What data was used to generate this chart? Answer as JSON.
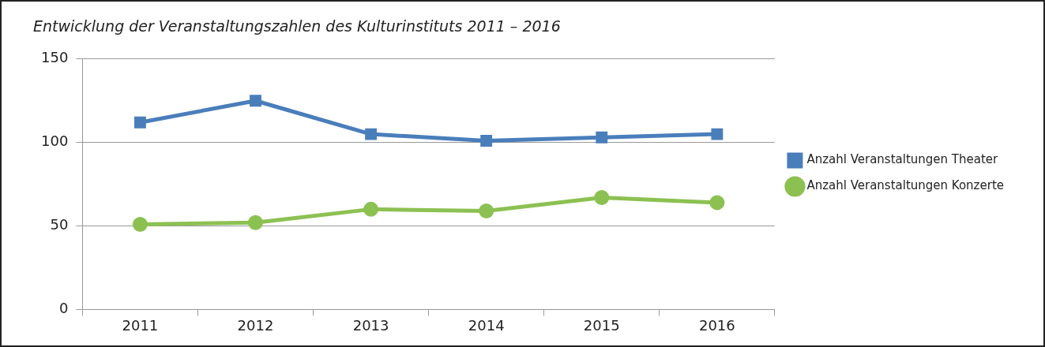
{
  "chart_data": {
    "type": "line",
    "title": "Entwicklung der Veranstaltungszahlen des Kulturinstituts 2011 – 2016",
    "categories": [
      "2011",
      "2012",
      "2013",
      "2014",
      "2015",
      "2016"
    ],
    "series": [
      {
        "name": "Anzahl Veranstaltungen Theater",
        "color": "#4a7ebb",
        "marker": "square",
        "values": [
          112,
          125,
          105,
          101,
          103,
          105
        ]
      },
      {
        "name": "Anzahl Veranstaltungen Konzerte",
        "color": "#8cc152",
        "marker": "circle",
        "values": [
          51,
          52,
          60,
          59,
          67,
          64
        ]
      }
    ],
    "ylim": [
      0,
      150
    ],
    "yticks": [
      0,
      50,
      100,
      150
    ],
    "grid": "y",
    "legend": "right",
    "line_style": "solid"
  }
}
